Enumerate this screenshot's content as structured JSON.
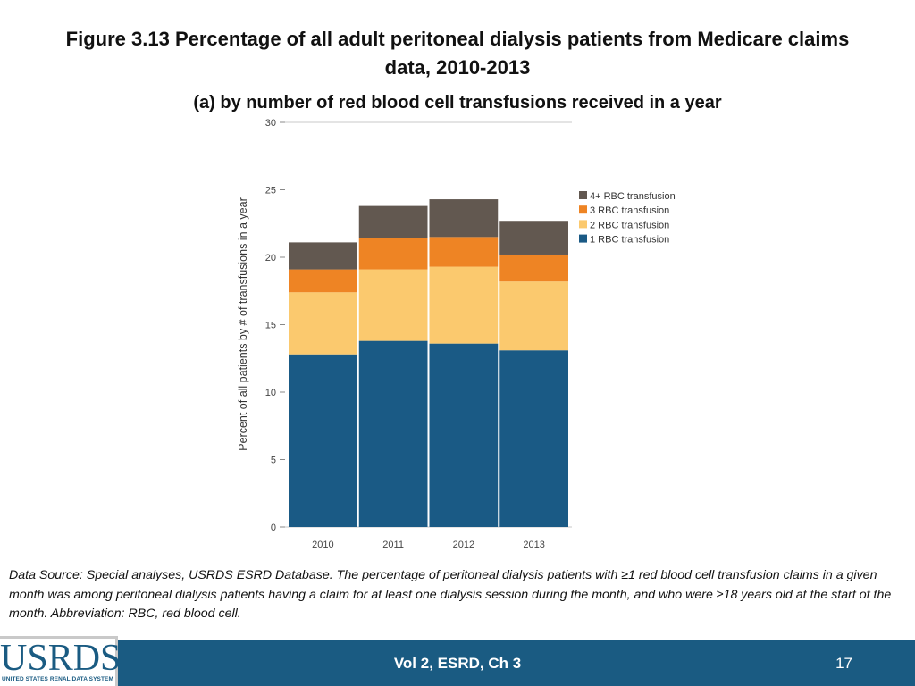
{
  "header": {
    "title": "Figure 3.13 Percentage of all adult peritoneal dialysis patients from Medicare claims data, 2010-2013",
    "subtitle": "(a) by number of red blood cell transfusions received in a year"
  },
  "chart_data": {
    "type": "bar",
    "stacked": true,
    "categories": [
      "2010",
      "2011",
      "2012",
      "2013"
    ],
    "series": [
      {
        "name": "1 RBC transfusion",
        "color": "#1a5a85",
        "values": [
          12.8,
          13.8,
          13.6,
          13.1
        ]
      },
      {
        "name": "2 RBC transfusion",
        "color": "#fbc96e",
        "values": [
          4.6,
          5.3,
          5.7,
          5.1
        ]
      },
      {
        "name": "3 RBC transfusion",
        "color": "#ee8424",
        "values": [
          1.7,
          2.3,
          2.2,
          2.0
        ]
      },
      {
        "name": "4+ RBC transfusion",
        "color": "#625850",
        "values": [
          2.0,
          2.4,
          2.8,
          2.5
        ]
      }
    ],
    "legend_order": [
      "4+ RBC transfusion",
      "3 RBC transfusion",
      "2 RBC transfusion",
      "1 RBC transfusion"
    ],
    "ylabel": "Percent of all patients by # of transfusions in a year",
    "xlabel": "",
    "yticks": [
      "0",
      "5",
      "10",
      "15",
      "20",
      "25",
      "30"
    ],
    "ylim": [
      0,
      30
    ],
    "legend_position": "right"
  },
  "footnote": "Data Source: Special analyses, USRDS ESRD Database. The percentage of peritoneal dialysis patients with ≥1 red blood cell transfusion claims in a given month was among peritoneal dialysis patients having a claim for at least one dialysis session during the month, and who were ≥18 years old at the start of the month. Abbreviation: RBC, red blood cell.",
  "footer": {
    "text": "Vol 2, ESRD, Ch 3",
    "page_number": "17",
    "logo_text": "USRDS",
    "logo_subtext": "UNITED STATES RENAL DATA SYSTEM"
  }
}
